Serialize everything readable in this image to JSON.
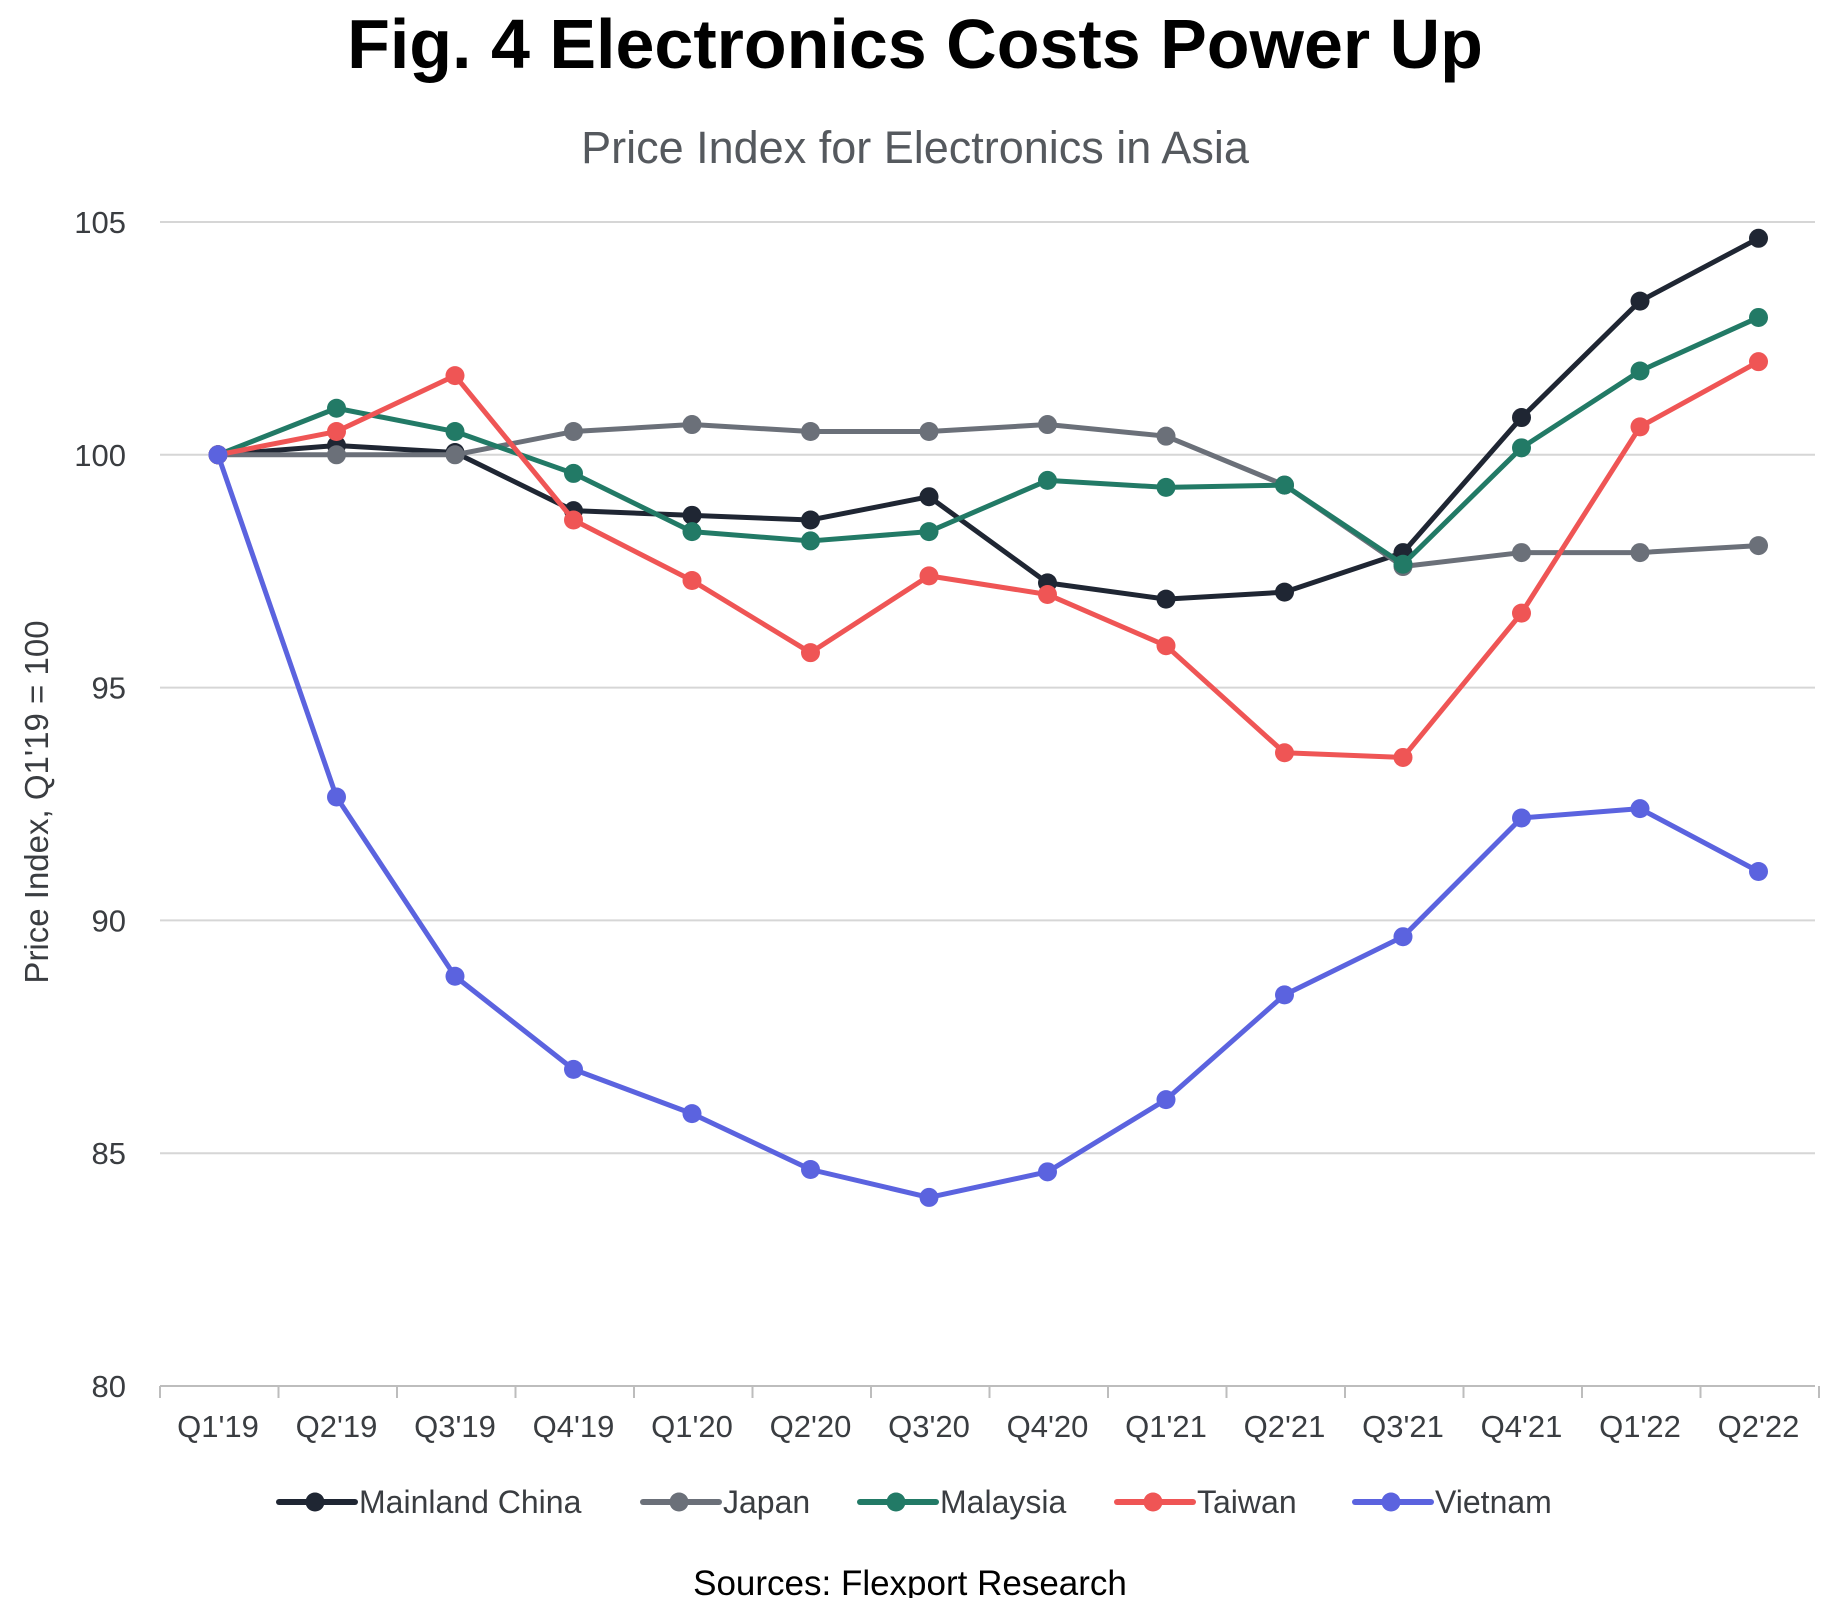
{
  "chart_data": {
    "type": "line",
    "title": "Fig. 4 Electronics Costs Power Up",
    "subtitle": "Price Index for Electronics in Asia",
    "xlabel": "",
    "ylabel": "Price Index, Q1'19 = 100",
    "ylim": [
      80,
      105
    ],
    "yticks": [
      80,
      85,
      90,
      95,
      100,
      105
    ],
    "grid": true,
    "legend_position": "bottom",
    "categories": [
      "Q1'19",
      "Q2'19",
      "Q3'19",
      "Q4'19",
      "Q1'20",
      "Q2'20",
      "Q3'20",
      "Q4'20",
      "Q1'21",
      "Q2'21",
      "Q3'21",
      "Q4'21",
      "Q1'22",
      "Q2'22"
    ],
    "series": [
      {
        "name": "Mainland China",
        "color": "#1f2633",
        "values": [
          100,
          100.2,
          100.05,
          98.8,
          98.7,
          98.6,
          99.1,
          97.25,
          96.9,
          97.05,
          97.9,
          100.8,
          103.3,
          104.65
        ]
      },
      {
        "name": "Japan",
        "color": "#6b7079",
        "values": [
          100,
          100.0,
          100.0,
          100.5,
          100.65,
          100.5,
          100.5,
          100.65,
          100.4,
          99.35,
          97.6,
          97.9,
          97.9,
          98.05
        ]
      },
      {
        "name": "Malaysia",
        "color": "#227a66",
        "values": [
          100,
          101.0,
          100.5,
          99.6,
          98.35,
          98.15,
          98.35,
          99.45,
          99.3,
          99.35,
          97.65,
          100.15,
          101.8,
          102.95
        ]
      },
      {
        "name": "Taiwan",
        "color": "#ef5555",
        "values": [
          100,
          100.5,
          101.7,
          98.6,
          97.3,
          95.75,
          97.4,
          97.0,
          95.9,
          93.6,
          93.5,
          96.6,
          100.6,
          102.0
        ]
      },
      {
        "name": "Vietnam",
        "color": "#5b63df",
        "values": [
          100,
          92.65,
          88.8,
          86.8,
          85.85,
          84.65,
          84.05,
          84.6,
          86.15,
          88.4,
          89.65,
          92.2,
          92.4,
          91.05
        ]
      }
    ],
    "source": "Sources: Flexport Research"
  }
}
